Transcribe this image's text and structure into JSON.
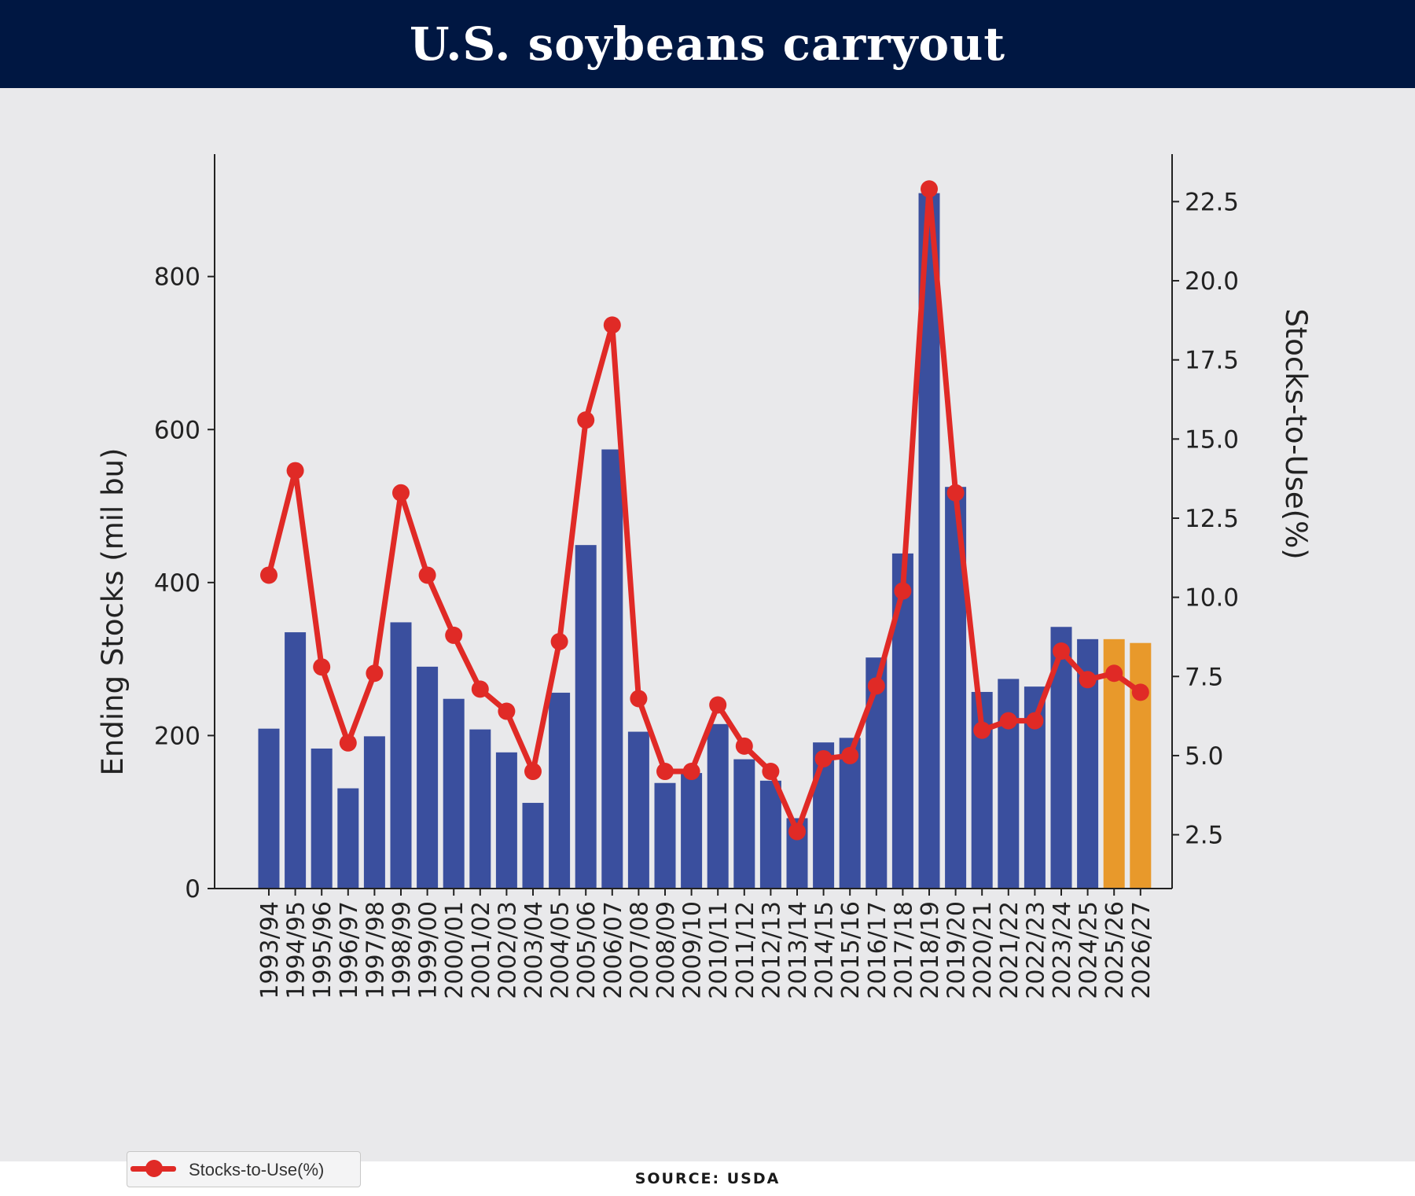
{
  "header": {
    "title": "U.S. soybeans carryout"
  },
  "source": "SOURCE: USDA",
  "chart_data": {
    "type": "bar",
    "title": "",
    "categories": [
      "1993/94",
      "1994/95",
      "1995/96",
      "1996/97",
      "1997/98",
      "1998/99",
      "1999/00",
      "2000/01",
      "2001/02",
      "2002/03",
      "2003/04",
      "2004/05",
      "2005/06",
      "2006/07",
      "2007/08",
      "2008/09",
      "2009/10",
      "2010/11",
      "2011/12",
      "2012/13",
      "2013/14",
      "2014/15",
      "2015/16",
      "2016/17",
      "2017/18",
      "2018/19",
      "2019/20",
      "2020/21",
      "2021/22",
      "2022/23",
      "2023/24",
      "2024/25",
      "2025/26",
      "2026/27"
    ],
    "ylabel": "Ending Stocks (mil bu)",
    "y2label": "Stocks-to-Use(%)",
    "ylim": [
      0,
      960
    ],
    "y2lim": [
      0.8,
      24.0
    ],
    "yticks": [
      0,
      200,
      400,
      600,
      800
    ],
    "y2ticks": [
      2.5,
      5.0,
      7.5,
      10.0,
      12.5,
      15.0,
      17.5,
      20.0,
      22.5
    ],
    "y2tick_labels": [
      "2.5",
      "5.0",
      "7.5",
      "10.0",
      "12.5",
      "15.0",
      "17.5",
      "20.0",
      "22.5"
    ],
    "legend": {
      "placement": "lower-left",
      "entries": [
        "Stocks-to-Use(%)"
      ]
    },
    "grid": false,
    "series": [
      {
        "type": "bar",
        "axis": "left",
        "values": [
          209,
          335,
          183,
          131,
          199,
          348,
          290,
          248,
          208,
          178,
          112,
          256,
          449,
          574,
          205,
          138,
          151,
          215,
          169,
          141,
          92,
          191,
          197,
          302,
          438,
          909,
          525,
          257,
          274,
          264,
          342,
          326,
          326,
          321
        ],
        "color": "#3a4f9e",
        "projected_color": "#e8992b",
        "projected_from_index": 32
      },
      {
        "type": "line",
        "axis": "right",
        "name": "Stocks-to-Use(%)",
        "values": [
          10.7,
          14.0,
          7.8,
          5.4,
          7.6,
          13.3,
          10.7,
          8.8,
          7.1,
          6.4,
          4.5,
          8.6,
          15.6,
          18.6,
          6.8,
          4.5,
          4.5,
          6.6,
          5.3,
          4.5,
          2.6,
          4.9,
          5.0,
          7.2,
          10.2,
          22.9,
          13.3,
          5.8,
          6.1,
          6.1,
          8.3,
          7.4,
          7.6,
          7.0
        ],
        "color": "#e02a26"
      }
    ]
  }
}
